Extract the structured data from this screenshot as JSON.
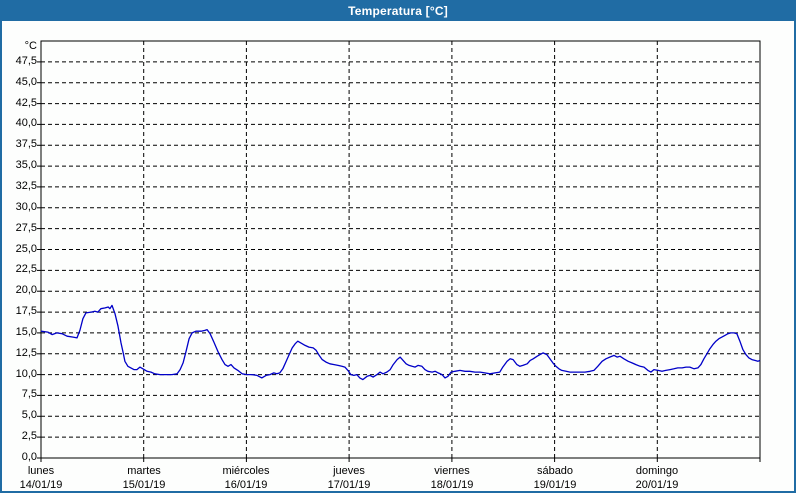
{
  "window": {
    "title": "Temperatura [°C]"
  },
  "colors": {
    "accent": "#206ca4",
    "series_line": "#0000c8",
    "plot_border": "#000000",
    "plot_background": "#fdfefd",
    "grid": "#000000",
    "text": "#000000"
  },
  "chart_data": {
    "type": "line",
    "title": "Temperatura [°C]",
    "unit_label": "°C",
    "ylim": [
      0,
      50
    ],
    "x_range_hours": [
      0,
      168
    ],
    "grid": "dashed",
    "legend": "none",
    "y_ticks": [
      {
        "value": 47.5,
        "label": "47,5"
      },
      {
        "value": 45.0,
        "label": "45,0"
      },
      {
        "value": 42.5,
        "label": "42,5"
      },
      {
        "value": 40.0,
        "label": "40,0"
      },
      {
        "value": 37.5,
        "label": "37,5"
      },
      {
        "value": 35.0,
        "label": "35,0"
      },
      {
        "value": 32.5,
        "label": "32,5"
      },
      {
        "value": 30.0,
        "label": "30,0"
      },
      {
        "value": 27.5,
        "label": "27,5"
      },
      {
        "value": 25.0,
        "label": "25,0"
      },
      {
        "value": 22.5,
        "label": "22,5"
      },
      {
        "value": 20.0,
        "label": "20,0"
      },
      {
        "value": 17.5,
        "label": "17,5"
      },
      {
        "value": 15.0,
        "label": "15,0"
      },
      {
        "value": 12.5,
        "label": "12,5"
      },
      {
        "value": 10.0,
        "label": "10,0"
      },
      {
        "value": 7.5,
        "label": "7,5"
      },
      {
        "value": 5.0,
        "label": "5,0"
      },
      {
        "value": 2.5,
        "label": "2,5"
      },
      {
        "value": 0.0,
        "label": "0,0"
      }
    ],
    "x_days": [
      {
        "name": "lunes",
        "date": "14/01/19"
      },
      {
        "name": "martes",
        "date": "15/01/19"
      },
      {
        "name": "miércoles",
        "date": "16/01/19"
      },
      {
        "name": "jueves",
        "date": "17/01/19"
      },
      {
        "name": "viernes",
        "date": "18/01/19"
      },
      {
        "name": "sábado",
        "date": "19/01/19"
      },
      {
        "name": "domingo",
        "date": "20/01/19"
      }
    ],
    "series": [
      {
        "name": "Temperatura",
        "color": "#0000c8",
        "points": [
          [
            0.0,
            15.2
          ],
          [
            1.6,
            15.1
          ],
          [
            2.6,
            14.8
          ],
          [
            3.7,
            15.0
          ],
          [
            4.9,
            14.9
          ],
          [
            6.1,
            14.6
          ],
          [
            7.5,
            14.5
          ],
          [
            8.4,
            14.4
          ],
          [
            9.1,
            15.3
          ],
          [
            9.8,
            16.7
          ],
          [
            10.5,
            17.4
          ],
          [
            11.7,
            17.5
          ],
          [
            12.6,
            17.6
          ],
          [
            13.3,
            17.5
          ],
          [
            14.0,
            17.9
          ],
          [
            15.0,
            18.0
          ],
          [
            15.7,
            18.1
          ],
          [
            16.1,
            17.9
          ],
          [
            16.6,
            18.3
          ],
          [
            17.3,
            17.3
          ],
          [
            18.0,
            15.8
          ],
          [
            18.7,
            13.8
          ],
          [
            19.2,
            12.6
          ],
          [
            19.6,
            11.6
          ],
          [
            20.3,
            11.0
          ],
          [
            21.0,
            10.8
          ],
          [
            21.7,
            10.6
          ],
          [
            22.4,
            10.6
          ],
          [
            23.1,
            10.9
          ],
          [
            23.8,
            10.7
          ],
          [
            24.8,
            10.4
          ],
          [
            25.7,
            10.3
          ],
          [
            26.6,
            10.1
          ],
          [
            27.8,
            10.0
          ],
          [
            29.2,
            10.0
          ],
          [
            30.6,
            10.0
          ],
          [
            31.8,
            10.1
          ],
          [
            32.5,
            10.6
          ],
          [
            33.2,
            11.4
          ],
          [
            33.9,
            12.8
          ],
          [
            34.6,
            14.3
          ],
          [
            35.3,
            15.0
          ],
          [
            36.2,
            15.2
          ],
          [
            37.4,
            15.2
          ],
          [
            38.3,
            15.3
          ],
          [
            38.8,
            15.4
          ],
          [
            39.5,
            14.9
          ],
          [
            40.4,
            13.9
          ],
          [
            41.4,
            12.7
          ],
          [
            42.3,
            11.8
          ],
          [
            43.0,
            11.2
          ],
          [
            43.7,
            11.0
          ],
          [
            44.4,
            11.2
          ],
          [
            45.1,
            10.8
          ],
          [
            46.0,
            10.5
          ],
          [
            47.0,
            10.1
          ],
          [
            48.1,
            10.0
          ],
          [
            49.3,
            10.0
          ],
          [
            50.5,
            9.9
          ],
          [
            51.6,
            9.6
          ],
          [
            52.6,
            9.9
          ],
          [
            53.5,
            10.0
          ],
          [
            54.4,
            10.2
          ],
          [
            55.1,
            10.1
          ],
          [
            55.8,
            10.2
          ],
          [
            56.5,
            10.7
          ],
          [
            57.2,
            11.5
          ],
          [
            57.9,
            12.3
          ],
          [
            58.7,
            13.2
          ],
          [
            59.4,
            13.7
          ],
          [
            60.0,
            14.0
          ],
          [
            60.7,
            13.8
          ],
          [
            61.7,
            13.5
          ],
          [
            62.6,
            13.3
          ],
          [
            63.6,
            13.2
          ],
          [
            64.3,
            12.9
          ],
          [
            65.0,
            12.3
          ],
          [
            65.7,
            11.8
          ],
          [
            66.6,
            11.5
          ],
          [
            67.5,
            11.3
          ],
          [
            68.5,
            11.2
          ],
          [
            69.4,
            11.1
          ],
          [
            70.3,
            11.0
          ],
          [
            71.0,
            10.9
          ],
          [
            71.7,
            10.5
          ],
          [
            72.4,
            10.0
          ],
          [
            73.1,
            9.9
          ],
          [
            73.8,
            10.0
          ],
          [
            74.5,
            9.6
          ],
          [
            75.2,
            9.4
          ],
          [
            76.2,
            9.8
          ],
          [
            76.9,
            9.9
          ],
          [
            77.6,
            9.7
          ],
          [
            78.5,
            10.0
          ],
          [
            79.2,
            10.3
          ],
          [
            79.9,
            10.1
          ],
          [
            80.8,
            10.3
          ],
          [
            81.6,
            10.6
          ],
          [
            82.3,
            11.2
          ],
          [
            83.2,
            11.8
          ],
          [
            83.9,
            12.1
          ],
          [
            84.6,
            11.7
          ],
          [
            85.3,
            11.3
          ],
          [
            86.0,
            11.1
          ],
          [
            86.7,
            11.0
          ],
          [
            87.4,
            10.9
          ],
          [
            88.1,
            11.1
          ],
          [
            89.0,
            11.0
          ],
          [
            89.7,
            10.6
          ],
          [
            90.4,
            10.4
          ],
          [
            91.4,
            10.3
          ],
          [
            92.1,
            10.4
          ],
          [
            92.8,
            10.2
          ],
          [
            93.7,
            10.0
          ],
          [
            94.4,
            9.6
          ],
          [
            95.1,
            9.8
          ],
          [
            95.8,
            10.3
          ],
          [
            96.7,
            10.4
          ],
          [
            97.9,
            10.5
          ],
          [
            99.1,
            10.4
          ],
          [
            100.2,
            10.4
          ],
          [
            101.4,
            10.3
          ],
          [
            102.6,
            10.3
          ],
          [
            103.7,
            10.2
          ],
          [
            104.9,
            10.1
          ],
          [
            106.1,
            10.2
          ],
          [
            107.2,
            10.3
          ],
          [
            107.9,
            10.9
          ],
          [
            108.9,
            11.6
          ],
          [
            109.6,
            11.9
          ],
          [
            110.3,
            11.8
          ],
          [
            111.2,
            11.2
          ],
          [
            111.9,
            11.0
          ],
          [
            112.6,
            11.1
          ],
          [
            113.6,
            11.3
          ],
          [
            114.3,
            11.7
          ],
          [
            115.0,
            11.9
          ],
          [
            115.9,
            12.2
          ],
          [
            116.6,
            12.4
          ],
          [
            117.3,
            12.6
          ],
          [
            118.2,
            12.4
          ],
          [
            118.9,
            11.9
          ],
          [
            119.6,
            11.4
          ],
          [
            120.3,
            11.0
          ],
          [
            121.0,
            10.7
          ],
          [
            121.7,
            10.5
          ],
          [
            122.7,
            10.4
          ],
          [
            123.6,
            10.3
          ],
          [
            124.8,
            10.3
          ],
          [
            125.9,
            10.3
          ],
          [
            127.1,
            10.3
          ],
          [
            128.3,
            10.4
          ],
          [
            129.2,
            10.5
          ],
          [
            130.1,
            11.0
          ],
          [
            131.1,
            11.6
          ],
          [
            132.0,
            11.9
          ],
          [
            132.9,
            12.1
          ],
          [
            133.9,
            12.3
          ],
          [
            134.6,
            12.1
          ],
          [
            135.3,
            12.2
          ],
          [
            136.2,
            11.9
          ],
          [
            137.2,
            11.6
          ],
          [
            138.1,
            11.4
          ],
          [
            139.0,
            11.2
          ],
          [
            140.0,
            11.0
          ],
          [
            140.9,
            10.9
          ],
          [
            141.8,
            10.5
          ],
          [
            142.5,
            10.3
          ],
          [
            143.2,
            10.6
          ],
          [
            144.2,
            10.5
          ],
          [
            145.1,
            10.4
          ],
          [
            146.0,
            10.5
          ],
          [
            147.0,
            10.6
          ],
          [
            147.9,
            10.7
          ],
          [
            148.8,
            10.8
          ],
          [
            149.8,
            10.8
          ],
          [
            150.7,
            10.9
          ],
          [
            151.6,
            10.9
          ],
          [
            152.6,
            10.7
          ],
          [
            153.5,
            10.8
          ],
          [
            154.2,
            11.2
          ],
          [
            154.9,
            11.9
          ],
          [
            155.6,
            12.5
          ],
          [
            156.3,
            13.1
          ],
          [
            157.0,
            13.6
          ],
          [
            157.7,
            14.0
          ],
          [
            158.4,
            14.3
          ],
          [
            159.1,
            14.5
          ],
          [
            159.8,
            14.7
          ],
          [
            160.5,
            14.9
          ],
          [
            161.2,
            15.0
          ],
          [
            161.9,
            15.0
          ],
          [
            162.6,
            14.9
          ],
          [
            163.3,
            14.0
          ],
          [
            164.0,
            13.0
          ],
          [
            164.7,
            12.4
          ],
          [
            165.4,
            12.0
          ],
          [
            166.1,
            11.8
          ],
          [
            166.8,
            11.7
          ],
          [
            167.5,
            11.6
          ],
          [
            168.0,
            11.7
          ]
        ]
      }
    ]
  }
}
